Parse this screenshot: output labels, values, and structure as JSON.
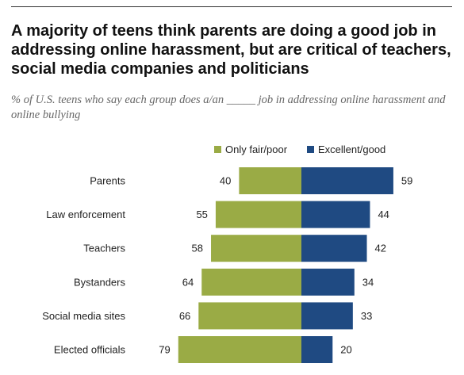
{
  "title": "A majority of teens think parents are doing a good job in addressing online harassment, but are critical of teachers, social media companies and politicians",
  "subtitle": "% of U.S. teens who say each group does a/an _____ job in addressing online harassment and online bullying",
  "colors": {
    "negative": "#9aab45",
    "positive": "#1f4a82"
  },
  "chart_data": {
    "type": "bar",
    "orientation": "horizontal-diverging",
    "categories": [
      "Parents",
      "Law enforcement",
      "Teachers",
      "Bystanders",
      "Social media sites",
      "Elected officials"
    ],
    "series": [
      {
        "name": "Only fair/poor",
        "values": [
          40,
          55,
          58,
          64,
          66,
          79
        ],
        "direction": "left"
      },
      {
        "name": "Excellent/good",
        "values": [
          59,
          44,
          42,
          34,
          33,
          20
        ],
        "direction": "right"
      }
    ],
    "title": "A majority of teens think parents are doing a good job in addressing online harassment, but are critical of teachers, social media companies and politicians",
    "subtitle": "% of U.S. teens who say each group does a/an _____ job in addressing online harassment and online bullying",
    "xlabel": "",
    "ylabel": "",
    "grid": false,
    "legend": "top"
  }
}
